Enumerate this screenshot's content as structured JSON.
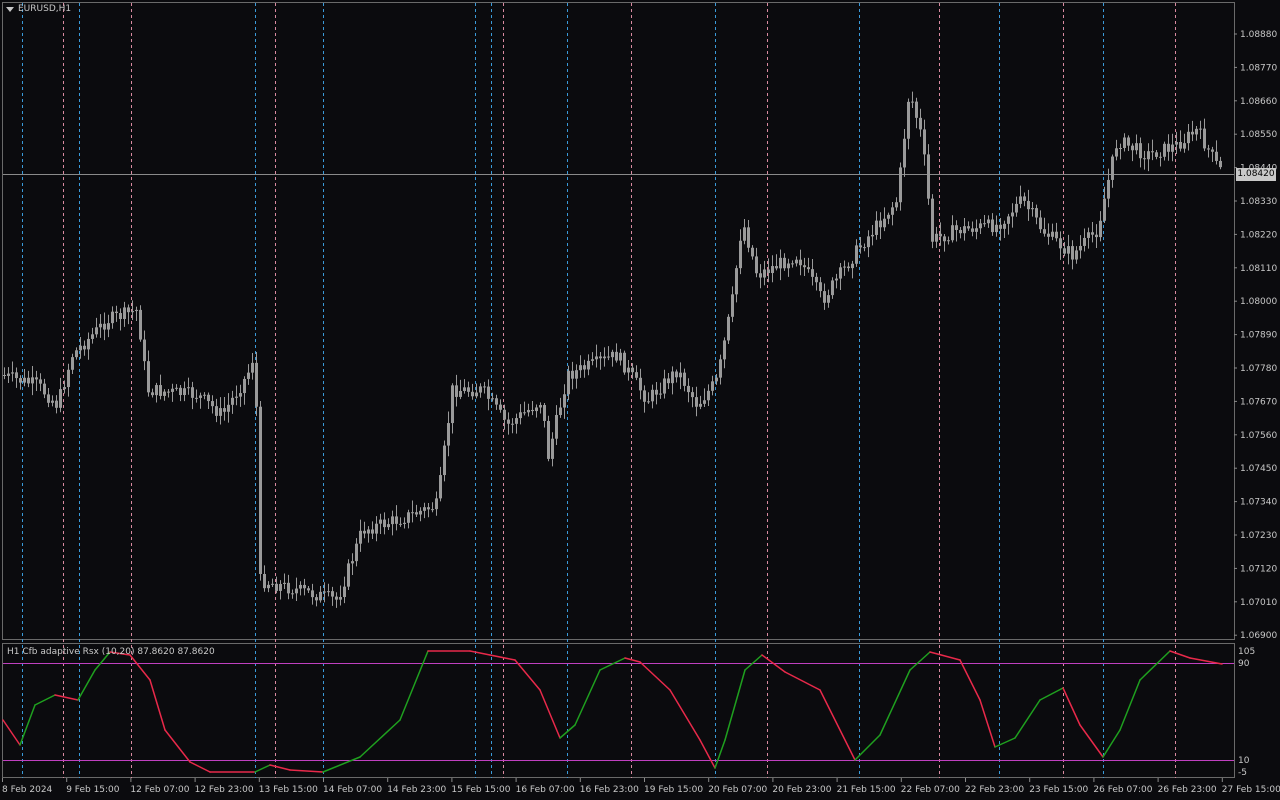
{
  "window": {
    "symbol": "EURUSD,H1"
  },
  "indicator": {
    "label": "H1 Cfb adaptive Rsx (10,20) 87.8620 87.8620"
  },
  "current_price": "1.08420",
  "price_axis": {
    "labels": [
      "1.08880",
      "1.08770",
      "1.08660",
      "1.08550",
      "1.08440",
      "1.08330",
      "1.08220",
      "1.08110",
      "1.08000",
      "1.07890",
      "1.07780",
      "1.07670",
      "1.07560",
      "1.07450",
      "1.07340",
      "1.07230",
      "1.07120",
      "1.07010",
      "1.06900"
    ]
  },
  "indicator_axis": {
    "labels": [
      "105",
      "90",
      "10",
      "-5"
    ]
  },
  "time_axis": {
    "labels": [
      "8 Feb 2024",
      "9 Feb 15:00",
      "12 Feb 07:00",
      "12 Feb 23:00",
      "13 Feb 15:00",
      "14 Feb 07:00",
      "14 Feb 23:00",
      "15 Feb 15:00",
      "16 Feb 07:00",
      "16 Feb 23:00",
      "19 Feb 15:00",
      "20 Feb 07:00",
      "20 Feb 23:00",
      "21 Feb 15:00",
      "22 Feb 07:00",
      "22 Feb 23:00",
      "23 Feb 15:00",
      "26 Feb 07:00",
      "26 Feb 23:00",
      "27 Feb 15:00"
    ]
  },
  "colors": {
    "background": "#0b0b0e",
    "candle": "#9a9a9a",
    "rsx_up": "#1fa01f",
    "rsx_down": "#e8294a",
    "level_line": "#c040c0",
    "vline_blue": "#3a9ad9",
    "vline_pink": "#d98aa0"
  }
}
